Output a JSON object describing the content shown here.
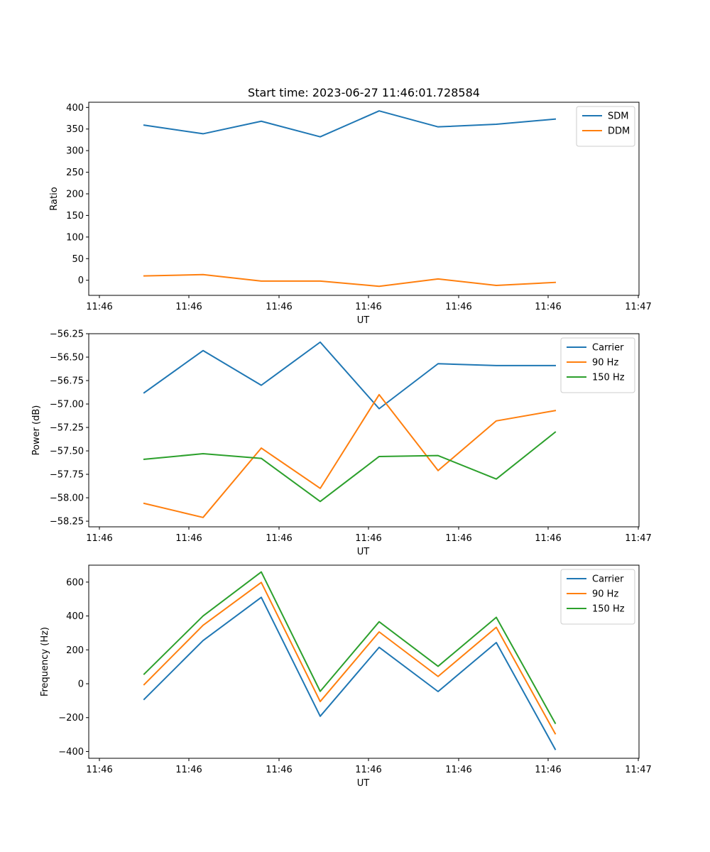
{
  "title": "Start time: 2023-06-27 11:46:01.728584",
  "colors": {
    "blue": "#1f77b4",
    "orange": "#ff7f0e",
    "green": "#2ca02c"
  },
  "chart_data": [
    {
      "type": "line",
      "title": "Start time: 2023-06-27 11:46:01.728584",
      "xlabel": "UT",
      "ylabel": "Ratio",
      "x_tick_labels": [
        "11:46",
        "11:46",
        "11:46",
        "11:46",
        "11:46",
        "11:46",
        "11:46"
      ],
      "x_end_label": "11:47",
      "y_ticks": [
        0,
        50,
        100,
        150,
        200,
        250,
        300,
        350,
        400
      ],
      "y_tick_labels": [
        "0",
        "50",
        "100",
        "150",
        "200",
        "250",
        "300",
        "350",
        "400"
      ],
      "ylim": [
        -35,
        412
      ],
      "grid": false,
      "legend_position": "top-right",
      "series": [
        {
          "name": "SDM",
          "color": "#1f77b4",
          "values": [
            359,
            339,
            368,
            332,
            392,
            355,
            361,
            373
          ]
        },
        {
          "name": "DDM",
          "color": "#ff7f0e",
          "values": [
            10,
            13,
            -2,
            -2,
            -14,
            3,
            -12,
            -5
          ]
        }
      ]
    },
    {
      "type": "line",
      "xlabel": "UT",
      "ylabel": "Power (dB)",
      "x_tick_labels": [
        "11:46",
        "11:46",
        "11:46",
        "11:46",
        "11:46",
        "11:46",
        "11:46"
      ],
      "x_end_label": "11:47",
      "y_ticks": [
        -58.25,
        -58.0,
        -57.75,
        -57.5,
        -57.25,
        -57.0,
        -56.75,
        -56.5,
        -56.25
      ],
      "y_tick_labels": [
        "−58.25",
        "−58.00",
        "−57.75",
        "−57.50",
        "−57.25",
        "−57.00",
        "−56.75",
        "−56.50",
        "−56.25"
      ],
      "ylim": [
        -58.31,
        -56.25
      ],
      "grid": false,
      "legend_position": "top-right",
      "series": [
        {
          "name": "Carrier",
          "color": "#1f77b4",
          "values": [
            -56.88,
            -56.43,
            -56.8,
            -56.34,
            -57.05,
            -56.57,
            -56.59,
            -56.59
          ]
        },
        {
          "name": "90 Hz",
          "color": "#ff7f0e",
          "values": [
            -58.06,
            -58.21,
            -57.47,
            -57.9,
            -56.9,
            -57.71,
            -57.18,
            -57.07
          ]
        },
        {
          "name": "150 Hz",
          "color": "#2ca02c",
          "values": [
            -57.59,
            -57.53,
            -57.58,
            -58.04,
            -57.56,
            -57.55,
            -57.8,
            -57.3
          ]
        }
      ]
    },
    {
      "type": "line",
      "xlabel": "UT",
      "ylabel": "Frequency (Hz)",
      "x_tick_labels": [
        "11:46",
        "11:46",
        "11:46",
        "11:46",
        "11:46",
        "11:46",
        "11:46"
      ],
      "x_end_label": "11:47",
      "y_ticks": [
        -400,
        -200,
        0,
        200,
        400,
        600
      ],
      "y_tick_labels": [
        "−400",
        "−200",
        "0",
        "200",
        "400",
        "600"
      ],
      "ylim": [
        -440,
        700
      ],
      "grid": false,
      "legend_position": "top-right",
      "series": [
        {
          "name": "Carrier",
          "color": "#1f77b4",
          "values": [
            -92,
            255,
            510,
            -192,
            215,
            -46,
            243,
            -387
          ]
        },
        {
          "name": "90 Hz",
          "color": "#ff7f0e",
          "values": [
            -5,
            345,
            598,
            -105,
            306,
            43,
            333,
            -295
          ]
        },
        {
          "name": "150 Hz",
          "color": "#2ca02c",
          "values": [
            57,
            400,
            660,
            -45,
            366,
            103,
            392,
            -233
          ]
        }
      ]
    }
  ]
}
